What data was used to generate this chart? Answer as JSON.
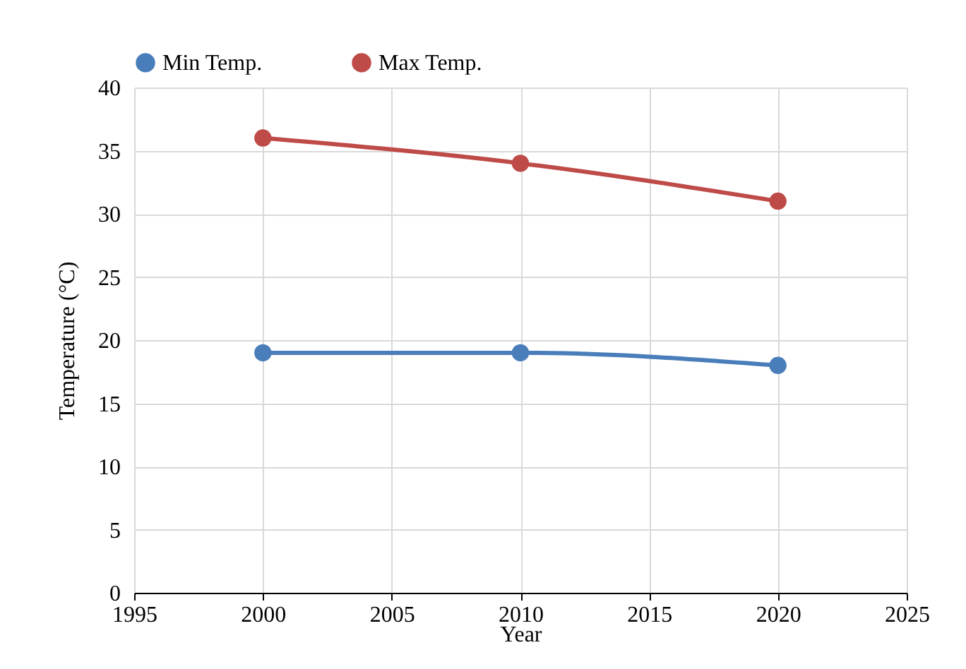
{
  "chart_data": {
    "type": "line",
    "xlabel": "Year",
    "ylabel": "Temperature (°C)",
    "x": [
      2000,
      2010,
      2020
    ],
    "series": [
      {
        "name": "Min Temp.",
        "color": "#4a7ebb",
        "values": [
          19,
          19,
          18
        ]
      },
      {
        "name": "Max Temp.",
        "color": "#be4b48",
        "values": [
          36,
          34,
          31
        ]
      }
    ],
    "xlim": [
      1995,
      2025
    ],
    "xticks": [
      1995,
      2000,
      2005,
      2010,
      2015,
      2020,
      2025
    ],
    "ylim": [
      0,
      40
    ],
    "yticks": [
      0,
      5,
      10,
      15,
      20,
      25,
      30,
      35,
      40
    ],
    "grid": true,
    "legend": "top",
    "marker": "circle",
    "line_style": "solid"
  }
}
